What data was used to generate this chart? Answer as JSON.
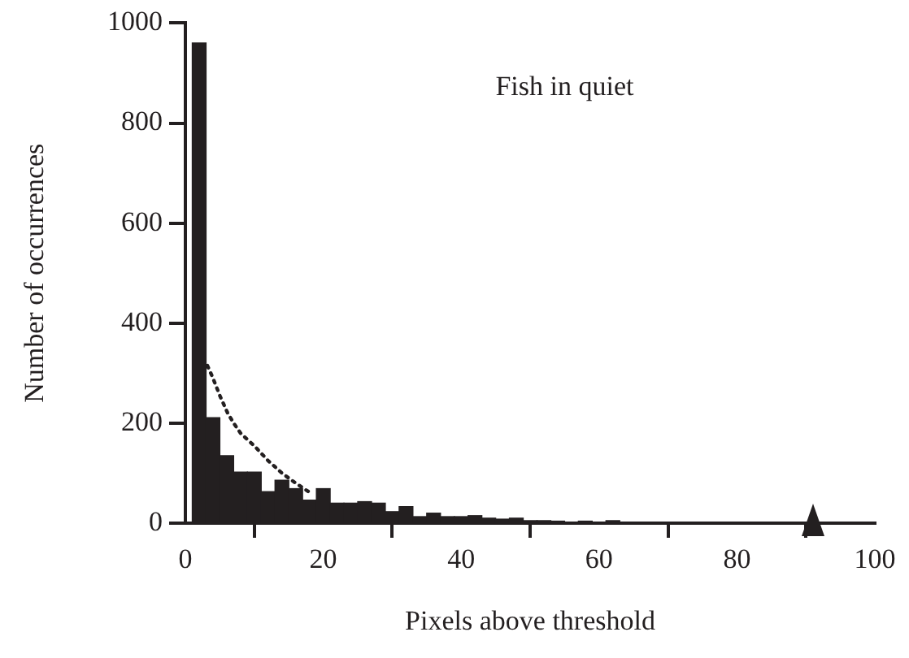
{
  "chart_data": {
    "type": "histogram",
    "title": "Fish in quiet",
    "xlabel": "Pixels above threshold",
    "ylabel": "Number of occurrences",
    "bins": [
      1,
      3,
      5,
      7,
      9,
      11,
      13,
      15,
      17,
      19,
      21,
      23,
      25,
      27,
      29,
      31,
      33,
      35,
      37,
      39,
      41,
      43,
      45,
      47,
      49,
      51,
      53,
      55,
      57,
      59,
      61,
      63,
      65,
      67,
      69
    ],
    "values": [
      960,
      211,
      135,
      102,
      102,
      63,
      86,
      69,
      46,
      69,
      40,
      40,
      43,
      40,
      23,
      33,
      13,
      20,
      13,
      13,
      15,
      10,
      8,
      10,
      5,
      5,
      4,
      null,
      4,
      null,
      5,
      null,
      null,
      null
    ],
    "color": "#231f20",
    "series": [
      {
        "type": "line",
        "color": "#231f20",
        "line_style": "dotted",
        "marker": "none",
        "x": [
          3.2,
          4,
          5,
          6.1,
          7,
          8,
          10.1,
          12,
          14,
          16,
          18.3
        ],
        "values": [
          315,
          290,
          255,
          221,
          200,
          180,
          153,
          125,
          100,
          80,
          59
        ]
      }
    ],
    "xlim": [
      0,
      100
    ],
    "xticks": [
      0,
      20,
      40,
      60,
      80,
      100
    ],
    "ylim": [
      0,
      1000
    ],
    "yticks": [
      0,
      200,
      400,
      600,
      800,
      1000
    ],
    "grid": false,
    "legend": false
  }
}
